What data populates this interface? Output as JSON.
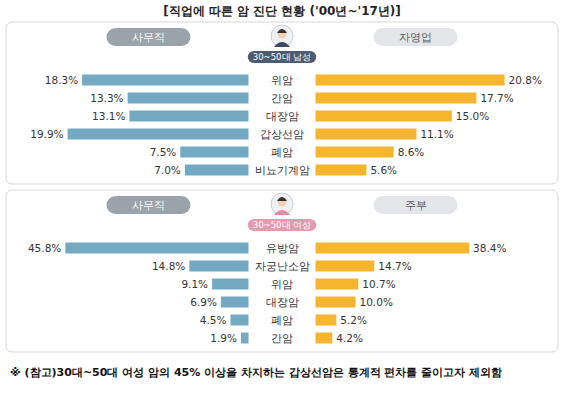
{
  "title": "[직업에 따른 암 진단 현황 ('00년~'17년)]",
  "footnote": "※ (참고)30대~50대 여성 암의 45% 이상을 차지하는 갑상선암은 통계적 편차를 줄이고자 제외함",
  "chart_data": [
    {
      "type": "bar",
      "orientation": "horizontal",
      "subtitle": "30~50대 남성",
      "categories": [
        "위암",
        "간암",
        "대장암",
        "갑상선암",
        "폐암",
        "비뇨기계암"
      ],
      "series": [
        {
          "name": "사무직",
          "color": "#74aac1",
          "values": [
            18.3,
            13.3,
            13.1,
            19.9,
            7.5,
            7.0
          ],
          "value_labels": [
            "18.3%",
            "13.3%",
            "13.1%",
            "19.9%",
            "7.5%",
            "7.0%"
          ]
        },
        {
          "name": "자영업",
          "color": "#f6b52e",
          "values": [
            20.8,
            17.7,
            15.0,
            11.1,
            8.6,
            5.6
          ],
          "value_labels": [
            "20.8%",
            "17.7%",
            "15.0%",
            "11.1%",
            "8.6%",
            "5.6%"
          ]
        }
      ],
      "xlim": [
        0,
        22
      ],
      "tick_labels": false,
      "data_labels": true
    },
    {
      "type": "bar",
      "orientation": "horizontal",
      "subtitle": "30~50대 여성",
      "categories": [
        "유방암",
        "자궁난소암",
        "위암",
        "대장암",
        "폐암",
        "간암"
      ],
      "series": [
        {
          "name": "사무직",
          "color": "#74aac1",
          "values": [
            45.8,
            14.8,
            9.1,
            6.9,
            4.5,
            1.9
          ],
          "value_labels": [
            "45.8%",
            "14.8%",
            "9.1%",
            "6.9%",
            "4.5%",
            "1.9%"
          ]
        },
        {
          "name": "주부",
          "color": "#f6b52e",
          "values": [
            38.4,
            14.7,
            10.7,
            10.0,
            5.2,
            4.2
          ],
          "value_labels": [
            "38.4%",
            "14.7%",
            "10.7%",
            "10.0%",
            "5.2%",
            "4.2%"
          ]
        }
      ],
      "xlim": [
        0,
        50
      ],
      "tick_labels": false,
      "data_labels": true
    }
  ]
}
